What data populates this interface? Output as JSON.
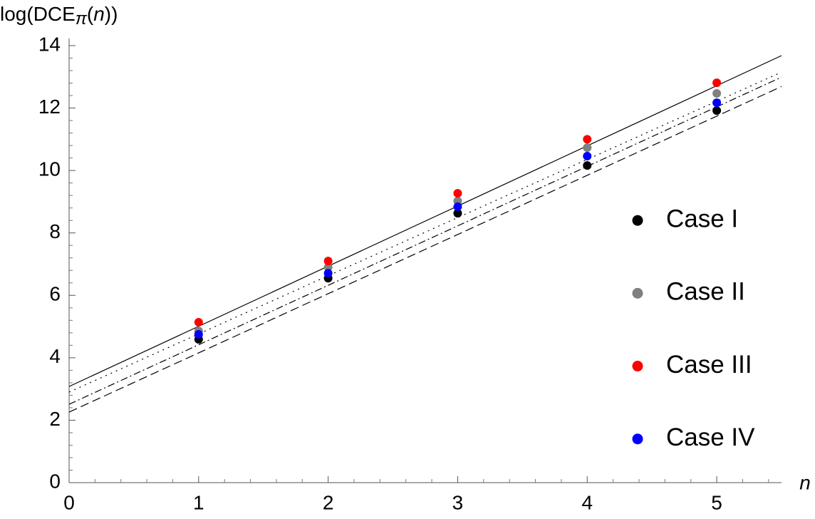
{
  "chart_data": {
    "type": "scatter",
    "ylabel": [
      "log(DCE",
      "π",
      "(",
      "n",
      "))"
    ],
    "xlabel": "n",
    "xlim": [
      0,
      5.5
    ],
    "xticks": [
      0,
      1,
      2,
      3,
      4,
      5
    ],
    "ylim": [
      0,
      14
    ],
    "yticks": [
      0,
      2,
      4,
      6,
      8,
      10,
      12,
      14
    ],
    "grid": false,
    "legend": "right",
    "series": [
      {
        "name": "Case I",
        "color": "#000000",
        "x": [
          1,
          2,
          3,
          4,
          5
        ],
        "values": [
          4.59,
          6.55,
          8.63,
          10.16,
          11.92
        ]
      },
      {
        "name": "Case II",
        "color": "#808080",
        "x": [
          1,
          2,
          3,
          4,
          5
        ],
        "values": [
          4.86,
          6.9,
          9.02,
          10.73,
          12.47
        ]
      },
      {
        "name": "Case III",
        "color": "#ff0000",
        "x": [
          1,
          2,
          3,
          4,
          5
        ],
        "values": [
          5.14,
          7.1,
          9.27,
          11.0,
          12.81
        ]
      },
      {
        "name": "Case IV",
        "color": "#0000ff",
        "x": [
          1,
          2,
          3,
          4,
          5
        ],
        "values": [
          4.75,
          6.71,
          8.84,
          10.46,
          12.17
        ]
      }
    ],
    "lines": [
      {
        "style": "solid",
        "color": "#000000",
        "x": [
          0,
          5.5
        ],
        "values": [
          3.08,
          13.68
        ]
      },
      {
        "style": "dotted",
        "color": "#000000",
        "x": [
          0,
          5.5
        ],
        "values": [
          2.9,
          13.15
        ]
      },
      {
        "style": "dashdot",
        "color": "#000000",
        "x": [
          0,
          5.5
        ],
        "values": [
          2.51,
          12.99
        ]
      },
      {
        "style": "dashed",
        "color": "#000000",
        "x": [
          0,
          5.5
        ],
        "values": [
          2.26,
          12.69
        ]
      }
    ]
  }
}
